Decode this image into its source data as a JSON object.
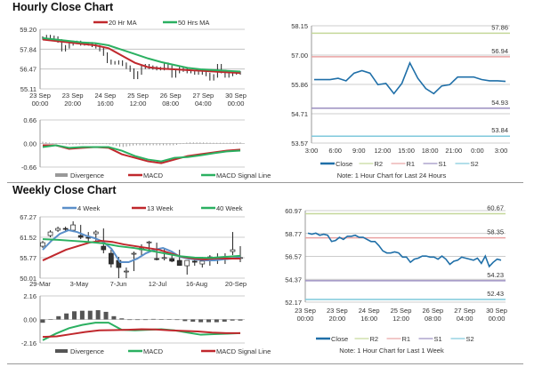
{
  "titles": {
    "hourly": "Hourly Close Chart",
    "weekly": "Weekly Close Chart"
  },
  "chart_data": [
    {
      "id": "hourly_candles",
      "type": "candlestick-line",
      "ylim": [
        55.11,
        59.2
      ],
      "yticks": [
        "59.20",
        "57.84",
        "56.47",
        "55.11"
      ],
      "xticks": [
        [
          "23 Sep",
          "00:00"
        ],
        [
          "23 Sep",
          "20:00"
        ],
        [
          "24 Sep",
          "16:00"
        ],
        [
          "25 Sep",
          "12:00"
        ],
        [
          "26 Sep",
          "08:00"
        ],
        [
          "27 Sep",
          "04:00"
        ],
        [
          "30 Sep",
          "00:00"
        ]
      ],
      "close": [
        58.6,
        58.7,
        58.65,
        58.6,
        58.4,
        57.8,
        58.0,
        58.2,
        58.3,
        58.3,
        58.2,
        58.2,
        58.2,
        58.1,
        58.0,
        57.8,
        57.5,
        57.0,
        56.9,
        56.9,
        56.95,
        56.8,
        56.6,
        56.4,
        55.9,
        56.2,
        56.6,
        56.7,
        56.6,
        56.55,
        56.5,
        56.5,
        56.8,
        56.6,
        56.0,
        56.3,
        56.5,
        56.4,
        56.3,
        56.3,
        56.2,
        56.2,
        56.3,
        56.1,
        55.8,
        56.0,
        56.7,
        56.3,
        56.0,
        56.1,
        56.2,
        56.2,
        56.2
      ],
      "series": [
        {
          "name": "20 Hr MA",
          "color": "#c0282d",
          "values": [
            58.5,
            58.4,
            58.3,
            58.2,
            58.1,
            57.9,
            57.4,
            56.9,
            56.6,
            56.5,
            56.45,
            56.4,
            56.35,
            56.3,
            56.25,
            56.2
          ]
        },
        {
          "name": "50 Hrs MA",
          "color": "#2bb061",
          "values": [
            58.6,
            58.5,
            58.4,
            58.3,
            58.25,
            58.1,
            57.8,
            57.5,
            57.2,
            56.95,
            56.75,
            56.55,
            56.45,
            56.4,
            56.35,
            56.3
          ]
        }
      ]
    },
    {
      "id": "hourly_macd",
      "type": "macd",
      "ylim": [
        -0.66,
        0.66
      ],
      "yticks": [
        "0.66",
        "0.00",
        "-0.66"
      ],
      "series": [
        {
          "name": "Divergence",
          "color": "#999999",
          "values": []
        },
        {
          "name": "MACD",
          "color": "#c0282d",
          "values": [
            -0.05,
            -0.05,
            -0.15,
            -0.12,
            -0.1,
            -0.12,
            -0.3,
            -0.4,
            -0.5,
            -0.55,
            -0.45,
            -0.35,
            -0.3,
            -0.25,
            -0.2,
            -0.17
          ]
        },
        {
          "name": "MACD Signal Line",
          "color": "#2bb061",
          "values": [
            -0.1,
            -0.05,
            -0.12,
            -0.1,
            -0.1,
            -0.1,
            -0.2,
            -0.35,
            -0.45,
            -0.5,
            -0.4,
            -0.38,
            -0.33,
            -0.27,
            -0.22,
            -0.2
          ]
        }
      ]
    },
    {
      "id": "hourly_24h",
      "type": "line",
      "ylim": [
        53.57,
        58.15
      ],
      "yticks": [
        "58.15",
        "57.00",
        "55.86",
        "54.71",
        "53.57"
      ],
      "xticks": [
        "3:00",
        "6:00",
        "9:00",
        "12:00",
        "15:00",
        "18:00",
        "21:00",
        "0:00",
        "3:00"
      ],
      "series": [
        {
          "name": "Close",
          "color": "#1f6fa8",
          "values": [
            56.05,
            56.05,
            56.05,
            56.1,
            56.0,
            56.3,
            56.4,
            56.3,
            55.85,
            55.9,
            55.5,
            55.9,
            56.7,
            56.1,
            55.7,
            55.5,
            55.8,
            55.85,
            56.15,
            56.15,
            56.15,
            56.05,
            56.0,
            56.0,
            55.98
          ]
        }
      ],
      "levels": [
        {
          "name": "R2",
          "value": 57.86,
          "label": "57.86",
          "color": "#c5d89a"
        },
        {
          "name": "R1",
          "value": 56.94,
          "label": "56.94",
          "color": "#eaa3a3"
        },
        {
          "name": "S1",
          "value": 54.93,
          "label": "54.93",
          "color": "#9b8fc0"
        },
        {
          "name": "S2",
          "value": 53.84,
          "label": "53.84",
          "color": "#7fc8dc"
        }
      ],
      "note": "Note: 1 Hour Chart for Last 24 Hours"
    },
    {
      "id": "weekly_candles",
      "type": "candlestick-line",
      "ylim": [
        50.01,
        67.27
      ],
      "yticks": [
        "67.27",
        "61.52",
        "55.77",
        "50.01"
      ],
      "xticks": [
        "29-Mar",
        "3-May",
        "7-Jun",
        "12-Jul",
        "16-Aug",
        "20-Sep"
      ],
      "ohlc": [
        [
          59,
          60.5,
          58.5,
          60
        ],
        [
          62,
          63.5,
          61.5,
          63
        ],
        [
          63.5,
          64.5,
          63,
          64
        ],
        [
          64,
          64.5,
          63,
          63.8
        ],
        [
          63.5,
          66,
          63,
          65
        ],
        [
          62,
          65,
          61,
          61.5
        ],
        [
          61.5,
          63,
          60,
          61.3
        ],
        [
          62.5,
          63.5,
          60.5,
          63
        ],
        [
          59,
          64,
          57,
          58
        ],
        [
          57,
          58,
          53,
          54
        ],
        [
          55,
          56,
          50,
          53
        ],
        [
          52,
          53,
          50,
          52
        ],
        [
          57,
          57.5,
          52,
          57
        ],
        [
          58,
          59.5,
          56,
          58.5
        ],
        [
          60,
          60.5,
          57.5,
          60.2
        ],
        [
          55.5,
          60,
          55,
          55.3
        ],
        [
          55.6,
          58.5,
          55,
          55.8
        ],
        [
          55.5,
          57,
          54.5,
          54.8
        ],
        [
          55,
          58,
          53.5,
          53.6
        ],
        [
          53.5,
          55,
          51,
          55
        ],
        [
          54.8,
          56,
          53.5,
          54.5
        ],
        [
          54,
          56,
          53,
          54.8
        ],
        [
          56,
          56.5,
          53.5,
          55.2
        ],
        [
          55.5,
          57,
          54,
          55.5
        ],
        [
          55.3,
          57,
          54,
          55.5
        ],
        [
          57.5,
          63,
          56.5,
          58
        ],
        [
          55.8,
          59,
          54.5,
          55.8
        ]
      ],
      "series": [
        {
          "name": "4 Week",
          "color": "#5b8fc9",
          "values": [
            58,
            60.5,
            62.5,
            63.5,
            63,
            62,
            61.3,
            60.3,
            58.3,
            54.5,
            54.5,
            55.5,
            57,
            58,
            58.5,
            57.5,
            56,
            55.5,
            55.2,
            55,
            55,
            55.3,
            55.5,
            56
          ]
        },
        {
          "name": "13 Week",
          "color": "#c0282d",
          "values": [
            55,
            56.5,
            58,
            59,
            60,
            60.5,
            60.2,
            59.5,
            59,
            58.5,
            58,
            57,
            56,
            55.5,
            55.3,
            55.6,
            55.5,
            55.5
          ]
        },
        {
          "name": "40 Week",
          "color": "#2bb061",
          "values": [
            61,
            60.8,
            60.5,
            60.2,
            59.8,
            59,
            58.5,
            57.8,
            57,
            56.2,
            55.8,
            55.7,
            56,
            56.3
          ]
        }
      ]
    },
    {
      "id": "weekly_macd",
      "type": "macd",
      "ylim": [
        -2.16,
        2.16
      ],
      "yticks": [
        "2.16",
        "0.00",
        "-2.16"
      ],
      "divergence": [
        -0.3,
        0,
        0.3,
        0.55,
        0.75,
        0.8,
        0.8,
        0.85,
        0.7,
        0.3,
        0.1,
        -0.05,
        -0.05,
        -0.05,
        0.05,
        0,
        0,
        -0.05,
        -0.15,
        -0.2,
        -0.25,
        -0.25,
        -0.25,
        -0.2,
        -0.1,
        -0.1
      ],
      "series": [
        {
          "name": "Divergence",
          "color": "#555555",
          "values": []
        },
        {
          "name": "MACD",
          "color": "#2bb061",
          "values": [
            -1.9,
            -1.3,
            -0.8,
            -0.5,
            -0.3,
            -0.3,
            -0.95,
            -1.0,
            -0.95,
            -0.9,
            -1.0,
            -1.2,
            -1.4,
            -1.35,
            -1.3,
            -1.25
          ]
        },
        {
          "name": "MACD Signal Line",
          "color": "#c0282d",
          "values": [
            -1.6,
            -1.55,
            -1.35,
            -1.15,
            -1.0,
            -0.98,
            -0.95,
            -0.9,
            -0.92,
            -1.0,
            -1.05,
            -1.1,
            -1.2,
            -1.25,
            -1.25
          ]
        }
      ]
    },
    {
      "id": "hourly_week",
      "type": "line",
      "ylim": [
        52.17,
        60.97
      ],
      "yticks": [
        "60.97",
        "58.77",
        "56.57",
        "54.37",
        "52.17"
      ],
      "xticks": [
        [
          "23 Sep",
          "00:00"
        ],
        [
          "23 Sep",
          "20:00"
        ],
        [
          "24 Sep",
          "16:00"
        ],
        [
          "25 Sep",
          "12:00"
        ],
        [
          "26 Sep",
          "08:00"
        ],
        [
          "27 Sep",
          "04:00"
        ],
        [
          "30 Sep",
          "00:00"
        ]
      ],
      "series": [
        {
          "name": "Close",
          "color": "#1f6fa8",
          "values": [
            58.8,
            58.7,
            58.8,
            58.6,
            58.7,
            58.6,
            58.0,
            58.1,
            58.4,
            58.2,
            58.5,
            58.5,
            58.6,
            58.4,
            58.4,
            58.2,
            58.0,
            58.0,
            57.6,
            57.1,
            56.9,
            56.9,
            57.0,
            56.9,
            56.5,
            56.5,
            56.0,
            56.3,
            56.4,
            56.6,
            56.6,
            56.5,
            56.5,
            56.3,
            56.6,
            56.3,
            55.8,
            56.1,
            56.2,
            56.5,
            56.4,
            56.3,
            56.2,
            56.4,
            55.9,
            56.6,
            55.6,
            56.0,
            56.3,
            56.2
          ]
        }
      ],
      "levels": [
        {
          "name": "R2",
          "value": 60.67,
          "label": "60.67",
          "color": "#c5d89a"
        },
        {
          "name": "R1",
          "value": 58.35,
          "label": "58.35",
          "color": "#eaa3a3"
        },
        {
          "name": "S1",
          "value": 54.23,
          "label": "54.23",
          "color": "#9b8fc0"
        },
        {
          "name": "S2",
          "value": 52.43,
          "label": "52.43",
          "color": "#7fc8dc"
        }
      ],
      "note": "Note: 1 Hour Chart for Last 1 Week"
    }
  ]
}
